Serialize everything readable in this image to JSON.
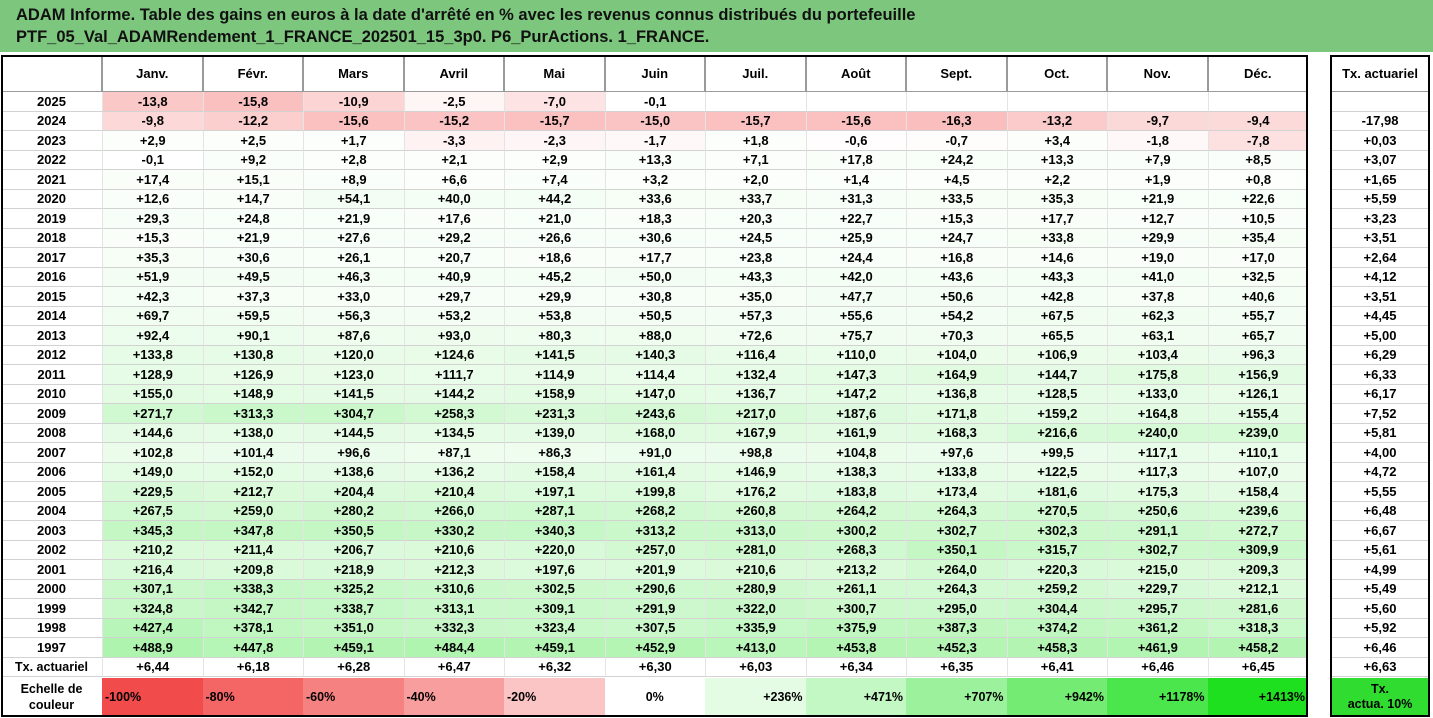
{
  "title": {
    "line1": "ADAM Informe. Table des gains en euros à la date d'arrêté en % avec les revenus connus distribués du portefeuille",
    "line2": "PTF_05_Val_ADAMRendement_1_FRANCE_202501_15_3p0. P6_PurActions. 1_FRANCE."
  },
  "table": {
    "months": [
      "Janv.",
      "Févr.",
      "Mars",
      "Avril",
      "Mai",
      "Juin",
      "Juil.",
      "Août",
      "Sept.",
      "Oct.",
      "Nov.",
      "Déc."
    ],
    "tx_header": "Tx. actuariel",
    "rows": [
      {
        "year": "2025",
        "values": [
          "-13,8",
          "-15,8",
          "-10,9",
          "-2,5",
          "-7,0",
          "-0,1",
          "",
          "",
          "",
          "",
          "",
          ""
        ],
        "tx": ""
      },
      {
        "year": "2024",
        "values": [
          "-9,8",
          "-12,2",
          "-15,6",
          "-15,2",
          "-15,7",
          "-15,0",
          "-15,7",
          "-15,6",
          "-16,3",
          "-13,2",
          "-9,7",
          "-9,4"
        ],
        "tx": "-17,98"
      },
      {
        "year": "2023",
        "values": [
          "+2,9",
          "+2,5",
          "+1,7",
          "-3,3",
          "-2,3",
          "-1,7",
          "+1,8",
          "-0,6",
          "-0,7",
          "+3,4",
          "-1,8",
          "-7,8"
        ],
        "tx": "+0,03"
      },
      {
        "year": "2022",
        "values": [
          "-0,1",
          "+9,2",
          "+2,8",
          "+2,1",
          "+2,9",
          "+13,3",
          "+7,1",
          "+17,8",
          "+24,2",
          "+13,3",
          "+7,9",
          "+8,5"
        ],
        "tx": "+3,07"
      },
      {
        "year": "2021",
        "values": [
          "+17,4",
          "+15,1",
          "+8,9",
          "+6,6",
          "+7,4",
          "+3,2",
          "+2,0",
          "+1,4",
          "+4,5",
          "+2,2",
          "+1,9",
          "+0,8"
        ],
        "tx": "+1,65"
      },
      {
        "year": "2020",
        "values": [
          "+12,6",
          "+14,7",
          "+54,1",
          "+40,0",
          "+44,2",
          "+33,6",
          "+33,7",
          "+31,3",
          "+33,5",
          "+35,3",
          "+21,9",
          "+22,6"
        ],
        "tx": "+5,59"
      },
      {
        "year": "2019",
        "values": [
          "+29,3",
          "+24,8",
          "+21,9",
          "+17,6",
          "+21,0",
          "+18,3",
          "+20,3",
          "+22,7",
          "+15,3",
          "+17,7",
          "+12,7",
          "+10,5"
        ],
        "tx": "+3,23"
      },
      {
        "year": "2018",
        "values": [
          "+15,3",
          "+21,9",
          "+27,6",
          "+29,2",
          "+26,6",
          "+30,6",
          "+24,5",
          "+25,9",
          "+24,7",
          "+33,8",
          "+29,9",
          "+35,4"
        ],
        "tx": "+3,51"
      },
      {
        "year": "2017",
        "values": [
          "+35,3",
          "+30,6",
          "+26,1",
          "+20,7",
          "+18,6",
          "+17,7",
          "+23,8",
          "+24,4",
          "+16,8",
          "+14,6",
          "+19,0",
          "+17,0"
        ],
        "tx": "+2,64"
      },
      {
        "year": "2016",
        "values": [
          "+51,9",
          "+49,5",
          "+46,3",
          "+40,9",
          "+45,2",
          "+50,0",
          "+43,3",
          "+42,0",
          "+43,6",
          "+43,3",
          "+41,0",
          "+32,5"
        ],
        "tx": "+4,12"
      },
      {
        "year": "2015",
        "values": [
          "+42,3",
          "+37,3",
          "+33,0",
          "+29,7",
          "+29,9",
          "+30,8",
          "+35,0",
          "+47,7",
          "+50,6",
          "+42,8",
          "+37,8",
          "+40,6"
        ],
        "tx": "+3,51"
      },
      {
        "year": "2014",
        "values": [
          "+69,7",
          "+59,5",
          "+56,3",
          "+53,2",
          "+53,8",
          "+50,5",
          "+57,3",
          "+55,6",
          "+54,2",
          "+67,5",
          "+62,3",
          "+55,7"
        ],
        "tx": "+4,45"
      },
      {
        "year": "2013",
        "values": [
          "+92,4",
          "+90,1",
          "+87,6",
          "+93,0",
          "+80,3",
          "+88,0",
          "+72,6",
          "+75,7",
          "+70,3",
          "+65,5",
          "+63,1",
          "+65,7"
        ],
        "tx": "+5,00"
      },
      {
        "year": "2012",
        "values": [
          "+133,8",
          "+130,8",
          "+120,0",
          "+124,6",
          "+141,5",
          "+140,3",
          "+116,4",
          "+110,0",
          "+104,0",
          "+106,9",
          "+103,4",
          "+96,3"
        ],
        "tx": "+6,29"
      },
      {
        "year": "2011",
        "values": [
          "+128,9",
          "+126,9",
          "+123,0",
          "+111,7",
          "+114,9",
          "+114,4",
          "+132,4",
          "+147,3",
          "+164,9",
          "+144,7",
          "+175,8",
          "+156,9"
        ],
        "tx": "+6,33"
      },
      {
        "year": "2010",
        "values": [
          "+155,0",
          "+148,9",
          "+141,5",
          "+144,2",
          "+158,9",
          "+147,0",
          "+136,7",
          "+147,2",
          "+136,8",
          "+128,5",
          "+133,0",
          "+126,1"
        ],
        "tx": "+6,17"
      },
      {
        "year": "2009",
        "values": [
          "+271,7",
          "+313,3",
          "+304,7",
          "+258,3",
          "+231,3",
          "+243,6",
          "+217,0",
          "+187,6",
          "+171,8",
          "+159,2",
          "+164,8",
          "+155,4"
        ],
        "tx": "+7,52"
      },
      {
        "year": "2008",
        "values": [
          "+144,6",
          "+138,0",
          "+144,5",
          "+134,5",
          "+139,0",
          "+168,0",
          "+167,9",
          "+161,9",
          "+168,3",
          "+216,6",
          "+240,0",
          "+239,0"
        ],
        "tx": "+5,81"
      },
      {
        "year": "2007",
        "values": [
          "+102,8",
          "+101,4",
          "+96,6",
          "+87,1",
          "+86,3",
          "+91,0",
          "+98,8",
          "+104,8",
          "+97,6",
          "+99,5",
          "+117,1",
          "+110,1"
        ],
        "tx": "+4,00"
      },
      {
        "year": "2006",
        "values": [
          "+149,0",
          "+152,0",
          "+138,6",
          "+136,2",
          "+158,4",
          "+161,4",
          "+146,9",
          "+138,3",
          "+133,8",
          "+122,5",
          "+117,3",
          "+107,0"
        ],
        "tx": "+4,72"
      },
      {
        "year": "2005",
        "values": [
          "+229,5",
          "+212,7",
          "+204,4",
          "+210,4",
          "+197,1",
          "+199,8",
          "+176,2",
          "+183,8",
          "+173,4",
          "+181,6",
          "+175,3",
          "+158,4"
        ],
        "tx": "+5,55"
      },
      {
        "year": "2004",
        "values": [
          "+267,5",
          "+259,0",
          "+280,2",
          "+266,0",
          "+287,1",
          "+268,2",
          "+260,8",
          "+264,2",
          "+264,3",
          "+270,5",
          "+250,6",
          "+239,6"
        ],
        "tx": "+6,48"
      },
      {
        "year": "2003",
        "values": [
          "+345,3",
          "+347,8",
          "+350,5",
          "+330,2",
          "+340,3",
          "+313,2",
          "+313,0",
          "+300,2",
          "+302,7",
          "+302,3",
          "+291,1",
          "+272,7"
        ],
        "tx": "+6,67"
      },
      {
        "year": "2002",
        "values": [
          "+210,2",
          "+211,4",
          "+206,7",
          "+210,6",
          "+220,0",
          "+257,0",
          "+281,0",
          "+268,3",
          "+350,1",
          "+315,7",
          "+302,7",
          "+309,9"
        ],
        "tx": "+5,61"
      },
      {
        "year": "2001",
        "values": [
          "+216,4",
          "+209,8",
          "+218,9",
          "+212,3",
          "+197,6",
          "+201,9",
          "+210,6",
          "+213,2",
          "+264,0",
          "+220,3",
          "+215,0",
          "+209,3"
        ],
        "tx": "+4,99"
      },
      {
        "year": "2000",
        "values": [
          "+307,1",
          "+338,3",
          "+325,2",
          "+310,6",
          "+302,5",
          "+290,6",
          "+280,9",
          "+261,1",
          "+264,3",
          "+259,2",
          "+229,7",
          "+212,1"
        ],
        "tx": "+5,49"
      },
      {
        "year": "1999",
        "values": [
          "+324,8",
          "+342,7",
          "+338,7",
          "+313,1",
          "+309,1",
          "+291,9",
          "+322,0",
          "+300,7",
          "+295,0",
          "+304,4",
          "+295,7",
          "+281,6"
        ],
        "tx": "+5,60"
      },
      {
        "year": "1998",
        "values": [
          "+427,4",
          "+378,1",
          "+351,0",
          "+332,3",
          "+323,4",
          "+307,5",
          "+335,9",
          "+375,9",
          "+387,3",
          "+374,2",
          "+361,2",
          "+318,3"
        ],
        "tx": "+5,92"
      },
      {
        "year": "1997",
        "values": [
          "+488,9",
          "+447,8",
          "+459,1",
          "+484,4",
          "+459,1",
          "+452,9",
          "+413,0",
          "+453,8",
          "+452,3",
          "+458,3",
          "+461,9",
          "+458,2"
        ],
        "tx": "+6,46"
      }
    ],
    "tx_row": {
      "label": "Tx. actuariel",
      "values": [
        "+6,44",
        "+6,18",
        "+6,28",
        "+6,47",
        "+6,32",
        "+6,30",
        "+6,03",
        "+6,34",
        "+6,35",
        "+6,41",
        "+6,46",
        "+6,45"
      ],
      "total": "+6,63"
    },
    "scale": {
      "label_line1": "Echelle de",
      "label_line2": "couleur",
      "items": [
        {
          "text": "-100%",
          "color": "#f24b4b"
        },
        {
          "text": "-80%",
          "color": "#f46565"
        },
        {
          "text": "-60%",
          "color": "#f68181"
        },
        {
          "text": "-40%",
          "color": "#f99e9e"
        },
        {
          "text": "-20%",
          "color": "#fcc5c5"
        },
        {
          "text": "0%",
          "color": "#ffffff"
        },
        {
          "text": "+236%",
          "color": "#e4fbe4"
        },
        {
          "text": "+471%",
          "color": "#c3f7c3"
        },
        {
          "text": "+707%",
          "color": "#9cf29c"
        },
        {
          "text": "+942%",
          "color": "#74ec74"
        },
        {
          "text": "+1178%",
          "color": "#4be64b"
        },
        {
          "text": "+1413%",
          "color": "#1fe01f"
        }
      ],
      "tx_line1": "Tx.",
      "tx_line2": "actua. 10%",
      "tx_color": "#2fdc2f"
    }
  }
}
